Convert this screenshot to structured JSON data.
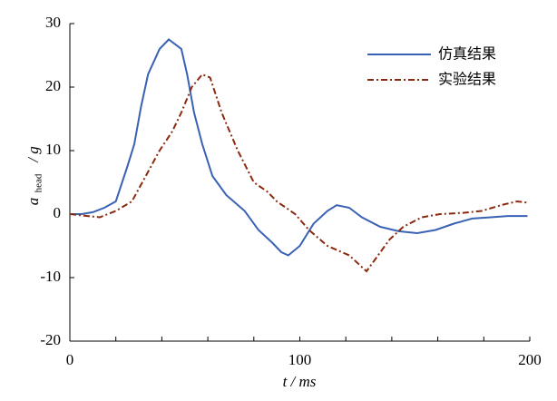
{
  "chart_data": {
    "type": "line",
    "xlabel": "t / ms",
    "ylabel": {
      "symbol": "a",
      "subscript": "head",
      "unit": "/ g"
    },
    "xlim": [
      0,
      200
    ],
    "xticks": [
      0,
      100,
      200
    ],
    "xminorticks": [
      20,
      40,
      60,
      80,
      120,
      140,
      160,
      180
    ],
    "ylim": [
      -20,
      30
    ],
    "yticks": [
      -20,
      -10,
      0,
      10,
      20,
      30
    ],
    "legend": "top-right",
    "series": [
      {
        "name": "仿真结果",
        "color": "#3a62b4",
        "dash": "solid",
        "x": [
          0,
          5,
          10,
          15,
          20,
          25,
          28,
          31,
          34,
          39,
          43,
          48.5,
          51,
          54,
          57.6,
          62,
          68,
          76,
          82,
          88,
          92,
          95,
          100,
          106,
          112,
          116,
          121.5,
          127,
          135,
          143,
          151,
          159,
          167,
          175,
          183,
          190.5,
          199
        ],
        "values": [
          0,
          0,
          0.3,
          1,
          2,
          7.5,
          11,
          17,
          22,
          26,
          27.5,
          26,
          22,
          16,
          11,
          6,
          3,
          0.5,
          -2.5,
          -4.5,
          -6,
          -6.5,
          -5,
          -1.5,
          0.5,
          1.4,
          1,
          -0.5,
          -2,
          -2.7,
          -3,
          -2.5,
          -1.5,
          -0.7,
          -0.5,
          -0.3,
          -0.3
        ]
      },
      {
        "name": "实验结果",
        "color": "#8b2a0e",
        "dash": "dashdot",
        "x": [
          0,
          5,
          13,
          20,
          27,
          33,
          39,
          44.5,
          48.5,
          53,
          57.6,
          61,
          66,
          73,
          80,
          86,
          90,
          98,
          104,
          112,
          121.5,
          129,
          133,
          139,
          145,
          153,
          161,
          171,
          179,
          188.5,
          194.5,
          199
        ],
        "values": [
          0,
          -0.2,
          -0.5,
          0.5,
          2,
          6,
          10,
          13,
          16,
          20,
          22,
          21.5,
          16,
          10,
          5,
          3.5,
          2,
          0,
          -2.5,
          -5,
          -6.5,
          -9,
          -7,
          -4,
          -2,
          -0.5,
          0,
          0.2,
          0.5,
          1.5,
          2,
          1.8
        ]
      }
    ]
  }
}
